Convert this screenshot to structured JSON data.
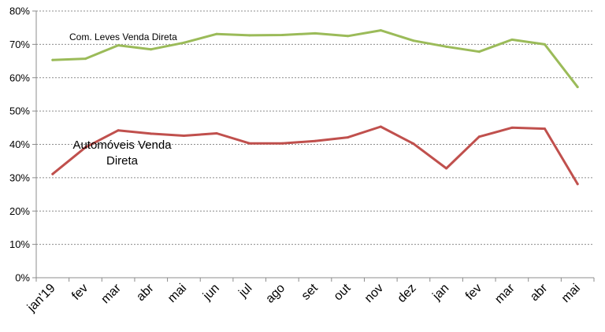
{
  "chart_data": {
    "type": "line",
    "title": "",
    "xlabel": "",
    "ylabel": "",
    "categories": [
      "jan'19",
      "fev",
      "mar",
      "abr",
      "mai",
      "jun",
      "jul",
      "ago",
      "set",
      "out",
      "nov",
      "dez",
      "jan",
      "fev",
      "mar",
      "abr",
      "mai"
    ],
    "ylim": [
      0,
      0.8
    ],
    "yticks": [
      "0%",
      "10%",
      "20%",
      "30%",
      "40%",
      "50%",
      "60%",
      "70%",
      "80%"
    ],
    "grid": "horizontal dashed",
    "legend": "none",
    "series": [
      {
        "name": "Com. Leves Venda Direta",
        "color": "#9BBB59",
        "values": [
          0.653,
          0.657,
          0.697,
          0.685,
          0.705,
          0.731,
          0.727,
          0.728,
          0.733,
          0.725,
          0.742,
          0.711,
          0.693,
          0.678,
          0.714,
          0.7,
          0.572
        ]
      },
      {
        "name": "Automóveis Venda Direta",
        "color": "#C0504D",
        "values": [
          0.311,
          0.391,
          0.442,
          0.432,
          0.426,
          0.433,
          0.403,
          0.403,
          0.41,
          0.421,
          0.453,
          0.402,
          0.328,
          0.423,
          0.45,
          0.447,
          0.281
        ]
      }
    ],
    "annotations": [
      {
        "series": 0,
        "lines": [
          "Com. Leves Venda Direta"
        ]
      },
      {
        "series": 1,
        "lines": [
          "Automóveis Venda",
          "Direta"
        ]
      }
    ]
  }
}
